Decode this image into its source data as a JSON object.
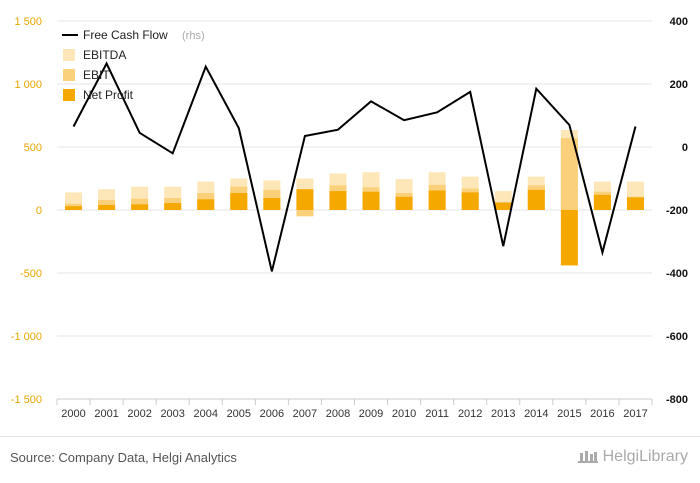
{
  "chart_data": {
    "type": "bar",
    "categories": [
      "2000",
      "2001",
      "2002",
      "2003",
      "2004",
      "2005",
      "2006",
      "2007",
      "2008",
      "2009",
      "2010",
      "2011",
      "2012",
      "2013",
      "2014",
      "2015",
      "2016",
      "2017"
    ],
    "series": [
      {
        "name": "EBITDA",
        "kind": "bar",
        "axis": "left",
        "color": "#fde7b8",
        "values": [
          140,
          165,
          185,
          185,
          225,
          250,
          235,
          250,
          290,
          300,
          245,
          300,
          265,
          150,
          265,
          635,
          225,
          225
        ]
      },
      {
        "name": "EBIT",
        "kind": "bar",
        "axis": "left",
        "color": "#fbd07a",
        "values": [
          50,
          80,
          90,
          95,
          135,
          185,
          160,
          -50,
          195,
          180,
          135,
          200,
          170,
          55,
          195,
          570,
          145,
          105
        ]
      },
      {
        "name": "Net Profit",
        "kind": "bar",
        "axis": "left",
        "color": "#f5a800",
        "values": [
          30,
          40,
          45,
          55,
          85,
          135,
          95,
          165,
          150,
          145,
          105,
          155,
          140,
          60,
          160,
          -440,
          120,
          100
        ]
      },
      {
        "name": "Free Cash Flow",
        "suffix": "(rhs)",
        "kind": "line",
        "axis": "right",
        "color": "#000000",
        "values": [
          65,
          265,
          45,
          -20,
          255,
          60,
          -395,
          35,
          55,
          145,
          85,
          110,
          175,
          -315,
          185,
          70,
          -335,
          65
        ]
      }
    ],
    "left_axis": {
      "ticks": [
        1500,
        1000,
        500,
        0,
        -500,
        -1000,
        -1500
      ],
      "labels": [
        "1 500",
        "1 000",
        "500",
        "0",
        "-500",
        "-1 000",
        "-1 500"
      ],
      "range": [
        -1500,
        1500
      ]
    },
    "right_axis": {
      "ticks": [
        400,
        200,
        0,
        -200,
        -400,
        -600,
        -800
      ],
      "labels": [
        "400",
        "200",
        "0",
        "-200",
        "-400",
        "-600",
        "-800"
      ],
      "range": [
        -800,
        400
      ]
    },
    "grid": true,
    "legend_position": "top-left"
  },
  "footer": {
    "source": "Source: Company Data, Helgi Analytics",
    "brand": "HelgiLibrary"
  }
}
